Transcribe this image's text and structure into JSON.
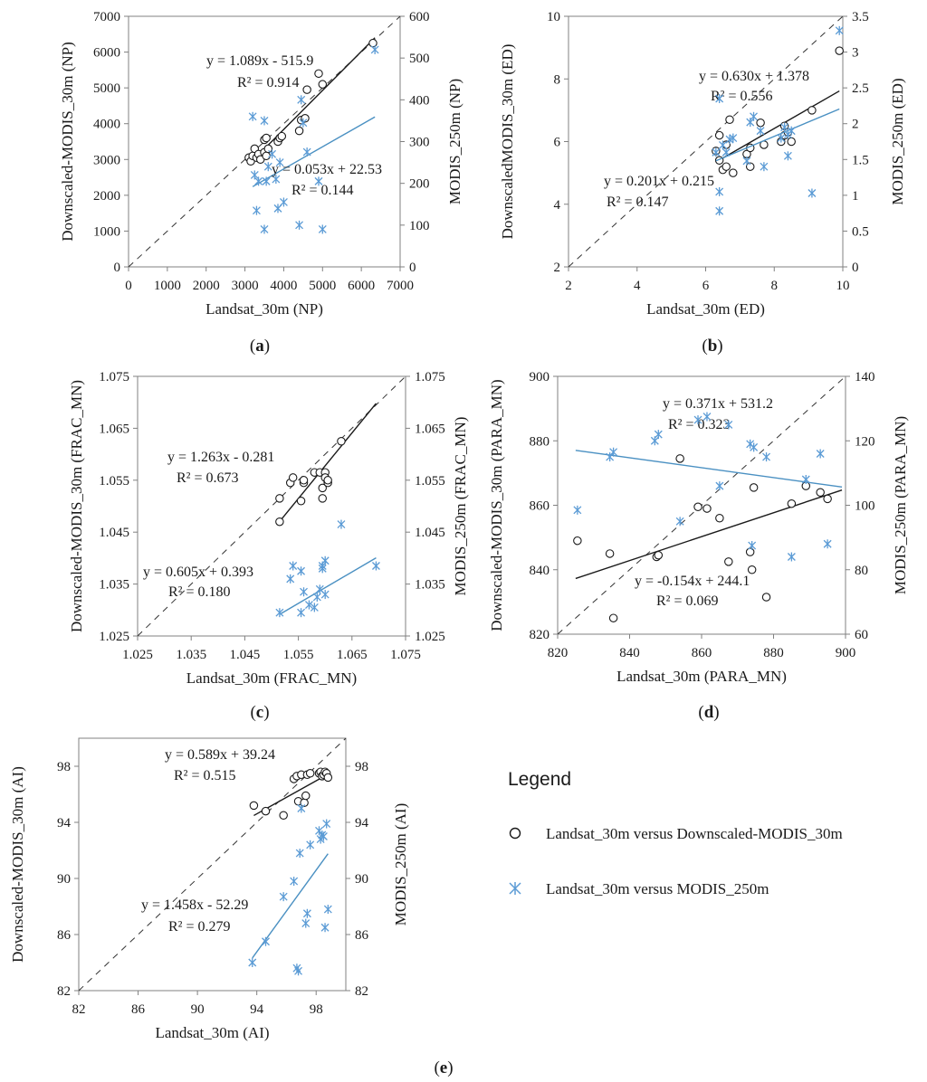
{
  "colors": {
    "black": "#1a1a1a",
    "blue": "#5b9bd5",
    "blueLine": "#4a90c2",
    "axis": "#808080"
  },
  "legend": {
    "title": "Legend",
    "items": [
      {
        "symbol": "circle",
        "label": "Landsat_30m versus Downscaled-MODIS_30m"
      },
      {
        "symbol": "star",
        "label": "Landsat_30m versus MODIS_250m"
      }
    ]
  },
  "chart_data": [
    {
      "id": "a",
      "type": "scatter",
      "panel_label": "a",
      "xlabel": "Landsat_30m (NP)",
      "ylabel_left": "Downscaled-MODIS_30m (NP)",
      "ylabel_right": "MODIS_250m (NP)",
      "xlim": [
        0,
        7000
      ],
      "ylim_left": [
        0,
        7000
      ],
      "ylim_right": [
        0,
        600
      ],
      "xticks": [
        0,
        1000,
        2000,
        3000,
        4000,
        5000,
        6000,
        7000
      ],
      "xtick_labels": [
        "0",
        "1000",
        "2000",
        "3000",
        "4000",
        "5000",
        "6000",
        "7000"
      ],
      "yticks_left": [
        0,
        1000,
        2000,
        3000,
        4000,
        5000,
        6000,
        7000
      ],
      "ytick_labels_left": [
        "0",
        "1000",
        "2000",
        "3000",
        "4000",
        "5000",
        "6000",
        "7000"
      ],
      "yticks_right": [
        0,
        100,
        200,
        300,
        400,
        500,
        600
      ],
      "ytick_labels_right": [
        "0",
        "100",
        "200",
        "300",
        "400",
        "500",
        "600"
      ],
      "series": [
        {
          "name": "Landsat_30m versus Downscaled-MODIS_30m",
          "marker": "circle",
          "axis": "left",
          "x": [
            3100,
            3150,
            3200,
            3250,
            3300,
            3350,
            3400,
            3500,
            3500,
            3550,
            3550,
            3600,
            3850,
            3900,
            3950,
            4400,
            4450,
            4550,
            4600,
            4900,
            5000,
            6300
          ],
          "y": [
            3050,
            2950,
            3100,
            3300,
            3050,
            3150,
            3000,
            3550,
            3200,
            3100,
            3600,
            3300,
            3500,
            3600,
            3650,
            3800,
            4100,
            4150,
            4950,
            5400,
            5100,
            6250
          ],
          "trend": {
            "slope": 1.089,
            "intercept": -515.9,
            "x_range": [
              3100,
              6350
            ]
          },
          "equation": "y = 1.089x - 515.9",
          "r2": "R² = 0.914"
        },
        {
          "name": "Landsat_30m versus MODIS_250m",
          "marker": "star",
          "axis": "right",
          "x": [
            3200,
            3250,
            3300,
            3350,
            3500,
            3500,
            3550,
            3600,
            3700,
            3800,
            3850,
            3900,
            4000,
            4400,
            4450,
            4500,
            4600,
            4900,
            5000,
            6350
          ],
          "y": [
            360,
            220,
            135,
            205,
            90,
            350,
            205,
            240,
            270,
            210,
            140,
            250,
            155,
            100,
            400,
            345,
            275,
            205,
            90,
            520
          ],
          "trend": {
            "slope": 0.053,
            "intercept": 22.53,
            "x_range": [
              3200,
              6350
            ]
          },
          "equation": "y = 0.053x + 22.53",
          "r2": "R² = 0.144"
        }
      ]
    },
    {
      "id": "b",
      "type": "scatter",
      "panel_label": "b",
      "xlabel": "Landsat_30m (ED)",
      "ylabel_left": "DownscaledMODIS_30m (ED)",
      "ylabel_right": "MODIS_250m (ED)",
      "xlim": [
        2,
        10
      ],
      "ylim_left": [
        2,
        10
      ],
      "ylim_right": [
        0,
        3.5
      ],
      "xticks": [
        2,
        4,
        6,
        8,
        10
      ],
      "xtick_labels": [
        "2",
        "4",
        "6",
        "8",
        "10"
      ],
      "yticks_left": [
        2,
        4,
        6,
        8,
        10
      ],
      "ytick_labels_left": [
        "2",
        "4",
        "6",
        "8",
        "10"
      ],
      "yticks_right": [
        0,
        0.5,
        1,
        1.5,
        2,
        2.5,
        3,
        3.5
      ],
      "ytick_labels_right": [
        "0",
        "0.5",
        "1",
        "1.5",
        "2",
        "2.5",
        "3",
        "3.5"
      ],
      "series": [
        {
          "name": "Landsat_30m versus Downscaled-MODIS_30m",
          "marker": "circle",
          "axis": "left",
          "x": [
            6.3,
            6.4,
            6.4,
            6.5,
            6.6,
            6.6,
            6.7,
            6.8,
            7.2,
            7.3,
            7.3,
            7.6,
            7.7,
            8.2,
            8.3,
            8.3,
            8.4,
            8.5,
            9.1,
            9.9
          ],
          "y": [
            5.7,
            5.4,
            6.2,
            5.1,
            5.2,
            5.9,
            6.7,
            5.0,
            5.6,
            5.8,
            5.2,
            6.6,
            5.9,
            6.0,
            6.2,
            6.5,
            6.3,
            6.0,
            7.0,
            8.9
          ],
          "trend": {
            "slope": 0.63,
            "intercept": 1.378,
            "x_range": [
              6.3,
              9.9
            ]
          },
          "equation": "y = 0.630x + 1.378",
          "r2": "R² = 0.556"
        },
        {
          "name": "Landsat_30m versus MODIS_250m",
          "marker": "star",
          "axis": "right",
          "x": [
            6.3,
            6.4,
            6.4,
            6.4,
            6.5,
            6.6,
            6.7,
            6.8,
            7.2,
            7.3,
            7.4,
            7.6,
            7.7,
            8.2,
            8.3,
            8.4,
            8.4,
            8.5,
            9.1,
            9.9
          ],
          "y": [
            1.6,
            2.35,
            1.05,
            0.78,
            1.7,
            1.6,
            1.78,
            1.8,
            1.48,
            2.02,
            2.1,
            1.9,
            1.4,
            1.8,
            1.95,
            1.85,
            1.55,
            1.9,
            1.03,
            3.3
          ],
          "trend": {
            "slope": 0.201,
            "intercept": 0.215,
            "x_range": [
              6.3,
              9.9
            ]
          },
          "equation": "y = 0.201x + 0.215",
          "r2": "R² = 0.147"
        }
      ]
    },
    {
      "id": "c",
      "type": "scatter",
      "panel_label": "c",
      "xlabel": "Landsat_30m (FRAC_MN)",
      "ylabel_left": "Downscaled-MODIS_30m (FRAC_MN)",
      "ylabel_right": "MODIS_250m (FRAC_MN)",
      "xlim": [
        1.025,
        1.075
      ],
      "ylim_left": [
        1.025,
        1.075
      ],
      "ylim_right": [
        1.025,
        1.075
      ],
      "xticks": [
        1.025,
        1.035,
        1.045,
        1.055,
        1.065,
        1.075
      ],
      "xtick_labels": [
        "1.025",
        "1.035",
        "1.045",
        "1.055",
        "1.065",
        "1.075"
      ],
      "yticks_left": [
        1.025,
        1.035,
        1.045,
        1.055,
        1.065,
        1.075
      ],
      "ytick_labels_left": [
        "1.025",
        "1.035",
        "1.045",
        "1.055",
        "1.065",
        "1.075"
      ],
      "yticks_right": [
        1.025,
        1.035,
        1.045,
        1.055,
        1.065,
        1.075
      ],
      "ytick_labels_right": [
        "1.025",
        "1.035",
        "1.045",
        "1.055",
        "1.065",
        "1.075"
      ],
      "series": [
        {
          "name": "Landsat_30m versus Downscaled-MODIS_30m",
          "marker": "circle",
          "axis": "left",
          "x": [
            1.0515,
            1.0515,
            1.0535,
            1.054,
            1.0555,
            1.056,
            1.056,
            1.058,
            1.059,
            1.0595,
            1.0595,
            1.06,
            1.06,
            1.0605,
            1.0605,
            1.063
          ],
          "y": [
            1.047,
            1.0515,
            1.0545,
            1.0555,
            1.051,
            1.0545,
            1.055,
            1.0565,
            1.0565,
            1.0515,
            1.0535,
            1.0565,
            1.0555,
            1.0545,
            1.055,
            1.0625
          ],
          "trend": {
            "slope": 1.263,
            "intercept": -0.281,
            "x_range": [
              1.0515,
              1.0695
            ]
          },
          "equation": "y = 1.263x - 0.281",
          "r2": "R² = 0.673"
        },
        {
          "name": "Landsat_30m versus MODIS_250m",
          "marker": "star",
          "axis": "right",
          "x": [
            1.0515,
            1.0535,
            1.054,
            1.0555,
            1.0555,
            1.056,
            1.057,
            1.058,
            1.0585,
            1.059,
            1.0595,
            1.0595,
            1.06,
            1.06,
            1.063,
            1.0695
          ],
          "y": [
            1.0295,
            1.036,
            1.0385,
            1.0295,
            1.0375,
            1.0335,
            1.031,
            1.0305,
            1.0325,
            1.034,
            1.0385,
            1.038,
            1.0395,
            1.033,
            1.0465,
            1.0385
          ],
          "trend": {
            "slope": 0.605,
            "intercept": 0.393,
            "x_range": [
              1.0515,
              1.0695
            ]
          },
          "equation": "y = 0.605x + 0.393",
          "r2": "R² = 0.180"
        }
      ]
    },
    {
      "id": "d",
      "type": "scatter",
      "panel_label": "d",
      "xlabel": "Landsat_30m (PARA_MN)",
      "ylabel_left": "Downscaled-MODIS_30m (PARA_MN)",
      "ylabel_right": "MODIS_250m (PARA_MN)",
      "xlim": [
        820,
        900
      ],
      "ylim_left": [
        820,
        900
      ],
      "ylim_right": [
        60,
        140
      ],
      "xticks": [
        820,
        840,
        860,
        880,
        900
      ],
      "xtick_labels": [
        "820",
        "840",
        "860",
        "880",
        "900"
      ],
      "yticks_left": [
        820,
        840,
        860,
        880,
        900
      ],
      "ytick_labels_left": [
        "820",
        "840",
        "860",
        "880",
        "900"
      ],
      "yticks_right": [
        60,
        80,
        100,
        120,
        140
      ],
      "ytick_labels_right": [
        "60",
        "80",
        "100",
        "120",
        "140"
      ],
      "series": [
        {
          "name": "Landsat_30m versus Downscaled-MODIS_30m",
          "marker": "circle",
          "axis": "left",
          "x": [
            825.5,
            834.5,
            835.5,
            847.5,
            848,
            854,
            859,
            861.5,
            865,
            867.5,
            873.5,
            874,
            874.5,
            878,
            885,
            889,
            893,
            895
          ],
          "y": [
            849,
            845,
            825,
            844,
            844.5,
            874.5,
            859.5,
            859,
            856,
            842.5,
            845.5,
            840,
            865.5,
            831.5,
            860.5,
            866,
            864,
            862
          ],
          "trend": {
            "slope": 0.371,
            "intercept": 531.2,
            "x_range": [
              825,
              899
            ]
          },
          "equation": "y = 0.371x + 531.2",
          "r2": "R² = 0.323"
        },
        {
          "name": "Landsat_30m versus MODIS_250m",
          "marker": "star",
          "axis": "right",
          "x": [
            825.5,
            834.5,
            835.5,
            847,
            848,
            854,
            859,
            861.5,
            865,
            867.5,
            873.5,
            874,
            874.5,
            878,
            885,
            889,
            893,
            895
          ],
          "y": [
            98.5,
            115,
            116.5,
            120,
            122,
            95,
            126.5,
            127.5,
            106,
            125,
            119,
            87.5,
            118,
            115,
            84,
            108,
            116,
            88
          ],
          "trend": {
            "slope": -0.154,
            "intercept": 244.1,
            "x_range": [
              825,
              899
            ]
          },
          "equation": "y = -0.154x + 244.1",
          "r2": "R² = 0.069"
        }
      ]
    },
    {
      "id": "e",
      "type": "scatter",
      "panel_label": "e",
      "xlabel": "Landsat_30m (AI)",
      "ylabel_left": "Downscaled-MODIS_30m (AI)",
      "ylabel_right": "MODIS_250m (AI)",
      "xlim": [
        82,
        100
      ],
      "ylim_left": [
        82,
        100
      ],
      "ylim_right": [
        82,
        100
      ],
      "xticks": [
        82,
        86,
        90,
        94,
        98
      ],
      "xtick_labels": [
        "82",
        "86",
        "90",
        "94",
        "98"
      ],
      "yticks_left": [
        82,
        86,
        90,
        94,
        98
      ],
      "ytick_labels_left": [
        "82",
        "86",
        "90",
        "94",
        "98"
      ],
      "yticks_right": [
        82,
        86,
        90,
        94,
        98
      ],
      "ytick_labels_right": [
        "82",
        "86",
        "90",
        "94",
        "98"
      ],
      "series": [
        {
          "name": "Landsat_30m versus Downscaled-MODIS_30m",
          "marker": "circle",
          "axis": "left",
          "x": [
            93.8,
            94.6,
            95.8,
            96.5,
            96.7,
            96.8,
            97.0,
            97.2,
            97.3,
            97.4,
            97.6,
            98.2,
            98.3,
            98.4,
            98.5,
            98.6,
            98.7,
            98.8
          ],
          "y": [
            95.2,
            94.8,
            94.5,
            97.1,
            97.3,
            95.5,
            97.4,
            95.4,
            95.9,
            97.4,
            97.5,
            97.5,
            97.6,
            97.3,
            97.4,
            97.6,
            97.5,
            97.2
          ],
          "trend": {
            "slope": 0.589,
            "intercept": 39.24,
            "x_range": [
              93.8,
              98.8
            ]
          },
          "equation": "y = 0.589x + 39.24",
          "r2": "R² = 0.515"
        },
        {
          "name": "Landsat_30m versus MODIS_250m",
          "marker": "star",
          "axis": "right",
          "x": [
            93.7,
            94.6,
            95.8,
            96.5,
            96.7,
            96.8,
            96.9,
            97.0,
            97.3,
            97.4,
            97.6,
            98.2,
            98.3,
            98.4,
            98.5,
            98.6,
            98.7,
            98.8
          ],
          "y": [
            84.0,
            85.5,
            88.7,
            89.8,
            83.6,
            83.4,
            91.8,
            95.0,
            86.8,
            87.5,
            92.4,
            93.4,
            92.8,
            93.1,
            93.0,
            86.5,
            93.9,
            87.8
          ],
          "trend": {
            "slope": 1.458,
            "intercept": -52.29,
            "x_range": [
              93.7,
              98.8
            ]
          },
          "equation": "y = 1.458x - 52.29",
          "r2": "R² = 0.279"
        }
      ]
    }
  ]
}
